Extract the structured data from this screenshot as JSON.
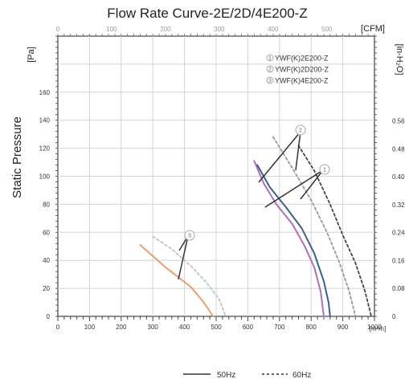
{
  "chart_data": {
    "type": "line",
    "title": "Flow Rate Curve-2E/2D/4E200-Z",
    "xlabel": "",
    "ylabel": "Static Pressure",
    "ylabel_unit": "[Pa]",
    "x_unit": "[m³/h]",
    "top_unit": "[CFM]",
    "right_unit": "[in-H₂O]",
    "xlim": [
      0,
      1000
    ],
    "ylim": [
      0,
      200
    ],
    "x_ticks": [
      "0",
      "100",
      "200",
      "300",
      "400",
      "500",
      "600",
      "700",
      "800",
      "900",
      "1000"
    ],
    "y_ticks": [
      "0",
      "20",
      "40",
      "60",
      "80",
      "100",
      "120",
      "140",
      "160"
    ],
    "top_ticks": [
      "0",
      "100",
      "200",
      "300",
      "400",
      "500"
    ],
    "right_ticks": [
      "0",
      "0.08",
      "0.16",
      "0.24",
      "0.32",
      "0.40",
      "0.48",
      "0.56"
    ],
    "models": [
      {
        "num": "1",
        "label": "YWF(K)2E200-Z"
      },
      {
        "num": "2",
        "label": "YWF(K)2D200-Z"
      },
      {
        "num": "3",
        "label": "YWF(K)4E200-Z"
      }
    ],
    "callouts": [
      "2",
      "1",
      "3"
    ],
    "series": [
      {
        "model": "3",
        "freq": "50Hz",
        "color": "#e8a070",
        "points": [
          [
            260,
            51
          ],
          [
            300,
            43
          ],
          [
            340,
            35
          ],
          [
            380,
            28
          ],
          [
            420,
            21
          ],
          [
            450,
            13
          ],
          [
            470,
            7
          ],
          [
            490,
            0
          ]
        ]
      },
      {
        "model": "3",
        "freq": "60Hz",
        "color": "#b8c8c8",
        "points": [
          [
            300,
            57
          ],
          [
            360,
            48
          ],
          [
            420,
            36
          ],
          [
            470,
            24
          ],
          [
            510,
            12
          ],
          [
            530,
            0
          ]
        ]
      },
      {
        "model": "1",
        "freq": "50Hz",
        "color": "#b070b8",
        "points": [
          [
            620,
            111
          ],
          [
            650,
            95
          ],
          [
            690,
            80
          ],
          [
            740,
            66
          ],
          [
            780,
            50
          ],
          [
            810,
            35
          ],
          [
            830,
            18
          ],
          [
            840,
            0
          ]
        ]
      },
      {
        "model": "2",
        "freq": "50Hz",
        "color": "#3d5f8f",
        "points": [
          [
            630,
            108
          ],
          [
            670,
            92
          ],
          [
            720,
            78
          ],
          [
            770,
            63
          ],
          [
            810,
            45
          ],
          [
            840,
            25
          ],
          [
            855,
            10
          ],
          [
            860,
            0
          ]
        ]
      },
      {
        "model": "1",
        "freq": "60Hz",
        "color": "#909aa5",
        "points": [
          [
            680,
            128
          ],
          [
            740,
            106
          ],
          [
            800,
            83
          ],
          [
            850,
            60
          ],
          [
            890,
            38
          ],
          [
            920,
            18
          ],
          [
            940,
            0
          ]
        ]
      },
      {
        "model": "2",
        "freq": "60Hz",
        "color": "#404650",
        "points": [
          [
            760,
            122
          ],
          [
            810,
            104
          ],
          [
            860,
            80
          ],
          [
            900,
            58
          ],
          [
            940,
            38
          ],
          [
            970,
            18
          ],
          [
            990,
            0
          ]
        ]
      }
    ],
    "legend": [
      {
        "label": "50Hz",
        "style": "solid"
      },
      {
        "label": "60Hz",
        "style": "dotted"
      }
    ]
  }
}
